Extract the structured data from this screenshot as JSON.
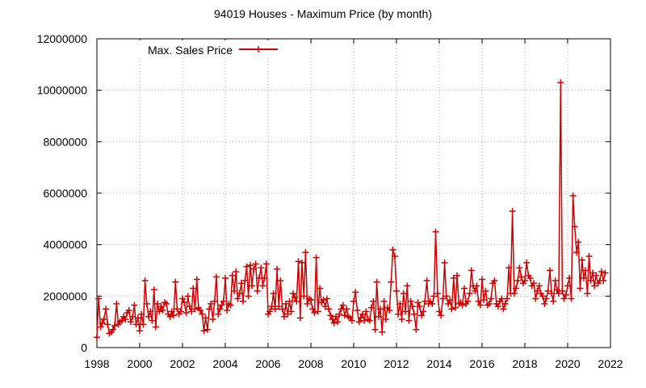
{
  "chart_data": {
    "type": "line",
    "title": "94019 Houses - Maximum Price (by month)",
    "xlabel": "",
    "ylabel": "",
    "xlim": [
      1998,
      2022
    ],
    "ylim": [
      0,
      12000000
    ],
    "x_ticks": [
      "1998",
      "2000",
      "2002",
      "2004",
      "2006",
      "2008",
      "2010",
      "2012",
      "2014",
      "2016",
      "2018",
      "2020",
      "2022"
    ],
    "y_ticks": [
      "0",
      "2000000",
      "4000000",
      "6000000",
      "8000000",
      "10000000",
      "12000000"
    ],
    "grid": true,
    "legend_position": "top-left",
    "series_color": "#cc0000",
    "series": [
      {
        "name": "Max. Sales Price",
        "x": [
          1998.0,
          1998.08,
          1998.17,
          1998.25,
          1998.33,
          1998.42,
          1998.5,
          1998.58,
          1998.67,
          1998.75,
          1998.83,
          1998.92,
          1999.0,
          1999.08,
          1999.17,
          1999.25,
          1999.33,
          1999.42,
          1999.5,
          1999.58,
          1999.67,
          1999.75,
          1999.83,
          1999.92,
          2000.0,
          2000.08,
          2000.17,
          2000.25,
          2000.33,
          2000.42,
          2000.5,
          2000.58,
          2000.67,
          2000.75,
          2000.83,
          2000.92,
          2001.0,
          2001.08,
          2001.17,
          2001.25,
          2001.33,
          2001.42,
          2001.5,
          2001.58,
          2001.67,
          2001.75,
          2001.83,
          2001.92,
          2002.0,
          2002.08,
          2002.17,
          2002.25,
          2002.33,
          2002.42,
          2002.5,
          2002.58,
          2002.67,
          2002.75,
          2002.83,
          2002.92,
          2003.0,
          2003.08,
          2003.17,
          2003.25,
          2003.33,
          2003.42,
          2003.5,
          2003.58,
          2003.67,
          2003.75,
          2003.83,
          2003.92,
          2004.0,
          2004.08,
          2004.17,
          2004.25,
          2004.33,
          2004.42,
          2004.5,
          2004.58,
          2004.67,
          2004.75,
          2004.83,
          2004.92,
          2005.0,
          2005.08,
          2005.17,
          2005.25,
          2005.33,
          2005.42,
          2005.5,
          2005.58,
          2005.67,
          2005.75,
          2005.83,
          2005.92,
          2006.0,
          2006.08,
          2006.17,
          2006.25,
          2006.33,
          2006.42,
          2006.5,
          2006.58,
          2006.67,
          2006.75,
          2006.83,
          2006.92,
          2007.0,
          2007.08,
          2007.17,
          2007.25,
          2007.33,
          2007.42,
          2007.5,
          2007.58,
          2007.67,
          2007.75,
          2007.83,
          2007.92,
          2008.0,
          2008.08,
          2008.17,
          2008.25,
          2008.33,
          2008.42,
          2008.5,
          2008.58,
          2008.67,
          2008.75,
          2008.83,
          2008.92,
          2009.0,
          2009.08,
          2009.17,
          2009.25,
          2009.33,
          2009.42,
          2009.5,
          2009.58,
          2009.67,
          2009.75,
          2009.83,
          2009.92,
          2010.0,
          2010.08,
          2010.17,
          2010.25,
          2010.33,
          2010.42,
          2010.5,
          2010.58,
          2010.67,
          2010.75,
          2010.83,
          2010.92,
          2011.0,
          2011.08,
          2011.17,
          2011.25,
          2011.33,
          2011.42,
          2011.5,
          2011.58,
          2011.67,
          2011.75,
          2011.83,
          2011.92,
          2012.0,
          2012.08,
          2012.17,
          2012.25,
          2012.33,
          2012.42,
          2012.5,
          2012.58,
          2012.67,
          2012.75,
          2012.83,
          2012.92,
          2013.0,
          2013.08,
          2013.17,
          2013.25,
          2013.33,
          2013.42,
          2013.5,
          2013.58,
          2013.67,
          2013.75,
          2013.83,
          2013.92,
          2014.0,
          2014.08,
          2014.17,
          2014.25,
          2014.33,
          2014.42,
          2014.5,
          2014.58,
          2014.67,
          2014.75,
          2014.83,
          2014.92,
          2015.0,
          2015.08,
          2015.17,
          2015.25,
          2015.33,
          2015.42,
          2015.5,
          2015.58,
          2015.67,
          2015.75,
          2015.83,
          2015.92,
          2016.0,
          2016.08,
          2016.17,
          2016.25,
          2016.33,
          2016.42,
          2016.5,
          2016.58,
          2016.67,
          2016.75,
          2016.83,
          2016.92,
          2017.0,
          2017.08,
          2017.17,
          2017.25,
          2017.33,
          2017.42,
          2017.5,
          2017.58,
          2017.67,
          2017.75,
          2017.83,
          2017.92,
          2018.0,
          2018.08,
          2018.17,
          2018.25,
          2018.33,
          2018.42,
          2018.5,
          2018.58,
          2018.67,
          2018.75,
          2018.83,
          2018.92,
          2019.0,
          2019.08,
          2019.17,
          2019.25,
          2019.33,
          2019.42,
          2019.5,
          2019.58,
          2019.67,
          2019.75,
          2019.83,
          2019.92,
          2020.0,
          2020.08,
          2020.17,
          2020.25,
          2020.33,
          2020.42,
          2020.5,
          2020.58,
          2020.67,
          2020.75,
          2020.83,
          2020.92,
          2021.0,
          2021.08,
          2021.17,
          2021.25,
          2021.33,
          2021.42,
          2021.5,
          2021.58,
          2021.67,
          2021.75
        ],
        "values": [
          400000,
          1900000,
          800000,
          950000,
          1100000,
          1500000,
          900000,
          550000,
          600000,
          700000,
          850000,
          1700000,
          900000,
          1000000,
          1050000,
          1200000,
          1100000,
          1350000,
          1450000,
          1000000,
          1200000,
          1650000,
          900000,
          1150000,
          650000,
          1300000,
          900000,
          2600000,
          1700000,
          1200000,
          1400000,
          1050000,
          2250000,
          800000,
          1700000,
          1400000,
          1600000,
          1450000,
          1750000,
          1700000,
          1300000,
          1200000,
          1400000,
          1250000,
          2550000,
          1500000,
          1300000,
          1400000,
          1900000,
          1750000,
          1350000,
          2000000,
          1600000,
          1400000,
          2300000,
          1500000,
          2650000,
          1550000,
          1450000,
          1300000,
          650000,
          1150000,
          700000,
          1500000,
          1700000,
          1100000,
          1800000,
          2750000,
          1300000,
          1500000,
          1650000,
          1800000,
          2700000,
          1450000,
          1700000,
          1650000,
          2800000,
          2200000,
          2950000,
          1900000,
          2100000,
          2500000,
          1800000,
          2600000,
          3150000,
          2000000,
          3200000,
          2400000,
          3050000,
          3250000,
          2200000,
          2700000,
          3100000,
          2400000,
          2700000,
          3250000,
          1300000,
          1400000,
          1600000,
          2100000,
          1500000,
          3050000,
          1600000,
          2600000,
          1500000,
          1200000,
          1700000,
          1300000,
          1800000,
          1400000,
          2100000,
          1950000,
          1800000,
          3350000,
          1150000,
          3300000,
          2000000,
          3700000,
          1700000,
          1900000,
          1850000,
          1500000,
          1350000,
          3500000,
          1400000,
          2300000,
          1750000,
          1850000,
          1600000,
          1900000,
          1500000,
          1250000,
          1100000,
          950000,
          1200000,
          1000000,
          1300000,
          1500000,
          1650000,
          1250000,
          1500000,
          1200000,
          1150000,
          1050000,
          1800000,
          2150000,
          1450000,
          1000000,
          1150000,
          1300000,
          1050000,
          1400000,
          1100000,
          1050000,
          1550000,
          1800000,
          700000,
          2550000,
          1200000,
          1500000,
          600000,
          1800000,
          1100000,
          1550000,
          1450000,
          2550000,
          3800000,
          3550000,
          2200000,
          1300000,
          1700000,
          1100000,
          2100000,
          1400000,
          2400000,
          1050000,
          1800000,
          1600000,
          1300000,
          700000,
          1750000,
          1600000,
          1250000,
          1400000,
          1800000,
          2600000,
          1700000,
          1800000,
          1700000,
          2000000,
          4500000,
          2100000,
          1400000,
          1250000,
          1900000,
          3300000,
          2000000,
          1700000,
          1850000,
          1500000,
          2700000,
          1550000,
          2800000,
          1700000,
          1750000,
          1650000,
          2300000,
          1700000,
          1800000,
          2100000,
          3000000,
          2400000,
          2200000,
          2400000,
          1800000,
          1650000,
          2650000,
          1850000,
          2200000,
          1650000,
          1700000,
          1900000,
          2500000,
          2600000,
          1700000,
          1600000,
          1800000,
          1900000,
          1500000,
          1700000,
          1900000,
          3100000,
          2100000,
          5300000,
          2100000,
          2300000,
          2600000,
          3100000,
          2750000,
          2500000,
          2600000,
          3300000,
          2800000,
          2700000,
          2400000,
          2500000,
          1900000,
          2200000,
          2400000,
          2100000,
          2000000,
          1700000,
          1900000,
          2200000,
          3000000,
          2100000,
          1800000,
          2600000,
          2250000,
          2100000,
          10300000,
          2200000,
          1900000,
          2050000,
          2400000,
          2700000,
          1900000,
          5900000,
          4700000,
          3700000,
          4100000,
          2300000,
          3400000,
          2700000,
          3000000,
          2100000,
          3550000,
          2600000,
          2900000,
          2400000,
          2800000,
          2500000,
          2600000,
          2950000,
          2600000,
          2900000
        ]
      }
    ]
  }
}
